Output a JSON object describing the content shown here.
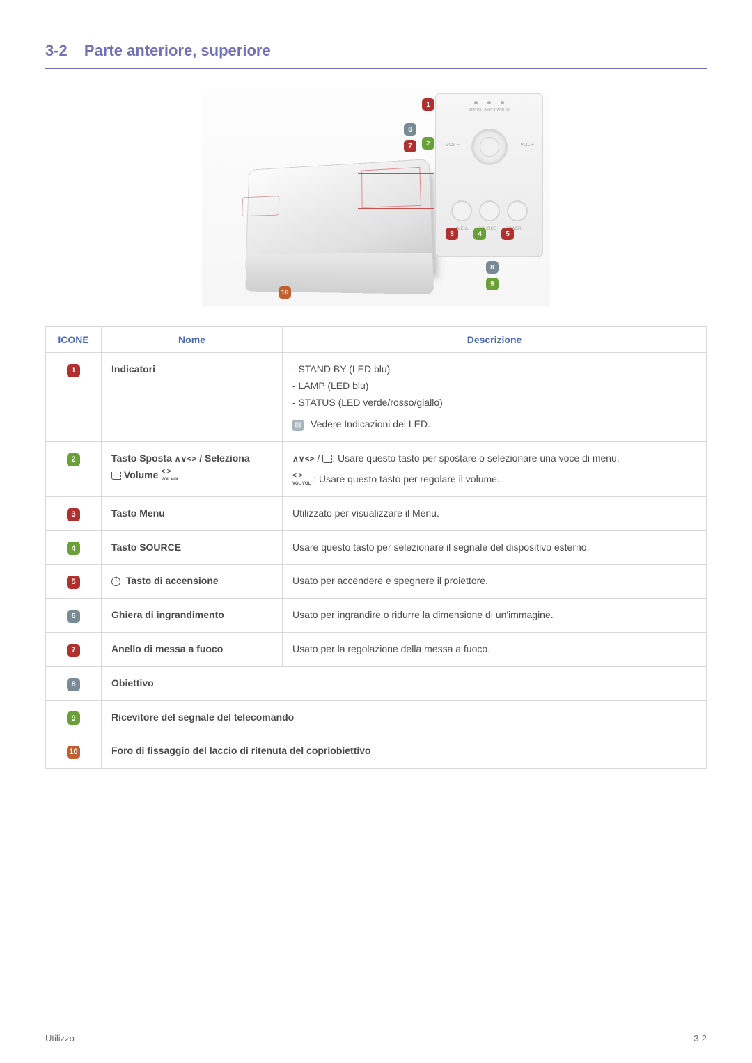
{
  "section": {
    "number": "3-2",
    "title": "Parte anteriore, superiore"
  },
  "diagram": {
    "panel_labels": {
      "leds": "STATUS  LAMP  STAND BY",
      "vol_minus": "VOL −",
      "vol_plus": "VOL +",
      "menu": "MENU",
      "source": "SOURCE",
      "power": "POWER"
    },
    "callouts": [
      {
        "n": "1",
        "color": "#b03030"
      },
      {
        "n": "2",
        "color": "#6aa038"
      },
      {
        "n": "3",
        "color": "#b03030"
      },
      {
        "n": "4",
        "color": "#6aa038"
      },
      {
        "n": "5",
        "color": "#b03030"
      },
      {
        "n": "6",
        "color": "#7a8a94"
      },
      {
        "n": "7",
        "color": "#b03030"
      },
      {
        "n": "8",
        "color": "#7a8a94"
      },
      {
        "n": "9",
        "color": "#6aa038"
      },
      {
        "n": "10",
        "color": "#c06030"
      }
    ]
  },
  "table": {
    "headers": {
      "icone": "ICONE",
      "nome": "Nome",
      "descrizione": "Descrizione"
    },
    "rows": [
      {
        "badge_color": "#b03030",
        "num": "1",
        "name": "Indicatori",
        "desc_lines": [
          "- STAND BY (LED blu)",
          "- LAMP (LED blu)",
          "- STATUS (LED verde/rosso/giallo)"
        ],
        "note": "Vedere Indicazioni dei LED."
      },
      {
        "badge_color": "#6aa038",
        "num": "2",
        "name_parts": {
          "prefix": "Tasto Sposta ",
          "arrows": "∧∨<>",
          "mid": " / Seleziona",
          "line2_enter": true,
          "line2_label": " Volume ",
          "line2_vol": true
        },
        "desc_parts": {
          "p1_arrows": "∧∨<>",
          "p1_text": ": Usare questo tasto per spostare o selezionare una voce di menu.",
          "p2_vol": true,
          "p2_text": " : Usare questo tasto per regolare il volume."
        }
      },
      {
        "badge_color": "#b03030",
        "num": "3",
        "name": "Tasto Menu",
        "desc": "Utilizzato per visualizzare il Menu."
      },
      {
        "badge_color": "#6aa038",
        "num": "4",
        "name": "Tasto SOURCE",
        "desc": "Usare questo tasto per selezionare il segnale del dispositivo esterno."
      },
      {
        "badge_color": "#b03030",
        "num": "5",
        "name_power": true,
        "name": " Tasto di accensione",
        "desc": "Usato per accendere e spegnere il proiettore."
      },
      {
        "badge_color": "#7a8a94",
        "num": "6",
        "name": "Ghiera di ingrandimento",
        "desc": "Usato per ingrandire o ridurre la dimensione di un'immagine."
      },
      {
        "badge_color": "#b03030",
        "num": "7",
        "name": "Anello di messa a fuoco",
        "desc": "Usato per la regolazione della messa a fuoco."
      },
      {
        "badge_color": "#7a8a94",
        "num": "8",
        "name": "Obiettivo",
        "span": true
      },
      {
        "badge_color": "#6aa038",
        "num": "9",
        "name": "Ricevitore del segnale del telecomando",
        "span": true
      },
      {
        "badge_color": "#c06030",
        "num": "10",
        "name": "Foro di fissaggio del laccio di ritenuta del copriobiettivo",
        "span": true
      }
    ]
  },
  "footer": {
    "left": "Utilizzo",
    "right": "3-2"
  },
  "colors": {
    "heading": "#7070b8",
    "th_text": "#4a68b8",
    "border": "#d8d8d8",
    "body_text": "#4a4a4a"
  }
}
